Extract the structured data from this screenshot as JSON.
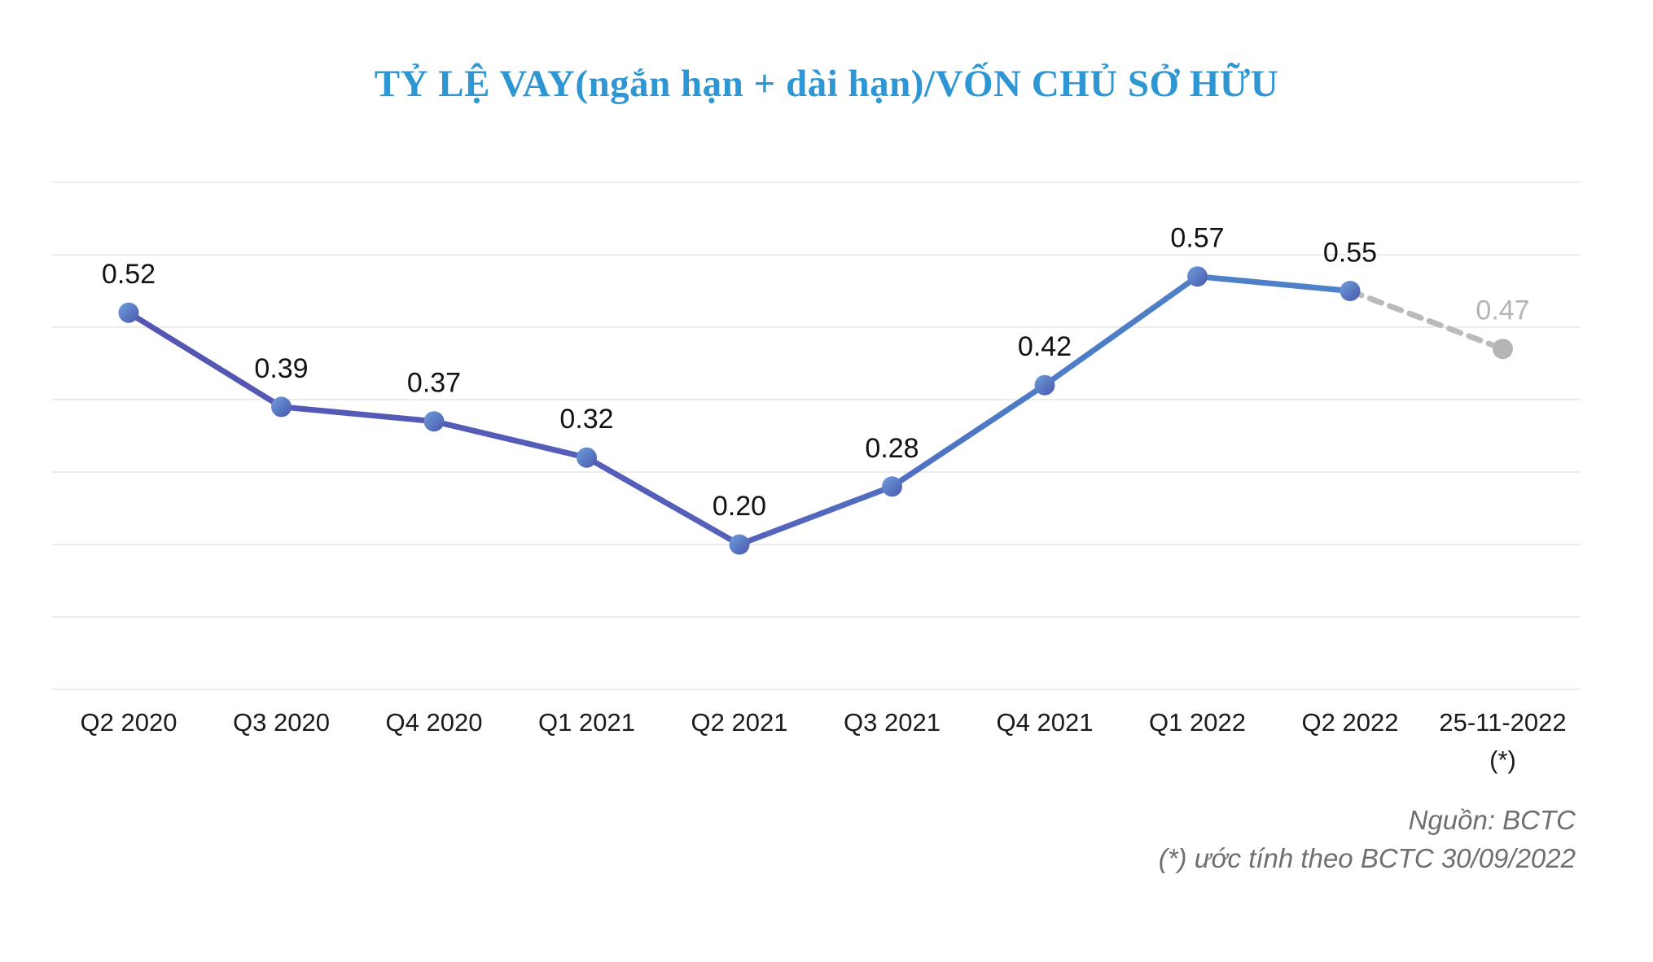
{
  "header": {
    "title": "TỶ LỆ VAY(ngắn hạn + dài hạn)/VỐN CHỦ SỞ HỮU",
    "title_color": "#2E96D2"
  },
  "chart_data": {
    "type": "line",
    "title": "TỶ LỆ VAY(ngắn hạn + dài hạn)/VỐN CHỦ SỞ HỮU",
    "categories": [
      "Q2 2020",
      "Q3 2020",
      "Q4 2020",
      "Q1 2021",
      "Q2 2021",
      "Q3 2021",
      "Q4 2021",
      "Q1 2022",
      "Q2 2022",
      "25-11-2022"
    ],
    "category_sublabels": [
      "",
      "",
      "",
      "",
      "",
      "",
      "",
      "",
      "",
      "(*)"
    ],
    "values": [
      0.52,
      0.39,
      0.37,
      0.32,
      0.2,
      0.28,
      0.42,
      0.57,
      0.55,
      0.47
    ],
    "value_labels": [
      "0.52",
      "0.39",
      "0.37",
      "0.32",
      "0.20",
      "0.28",
      "0.42",
      "0.57",
      "0.55",
      "0.47"
    ],
    "estimated_point_index": 9,
    "xlabel": "",
    "ylabel": "",
    "ylim": [
      0,
      0.7
    ],
    "grid_step": 0.1,
    "grid": true,
    "legend": false,
    "colors": {
      "line_gradient_start": "#5355B0",
      "line_gradient_mid": "#5560BB",
      "line_gradient_mid2": "#4C7CC5",
      "line_gradient_end": "#4F86CA",
      "dot_gradient_light": "#6FA0DC",
      "dot_gradient_dark": "#4856AC",
      "estimated_line": "#BABABA",
      "estimated_dot": "#B5B5B5",
      "estimated_label": "#B4B4B4",
      "gridline": "#ECECEC",
      "value_label": "#121212",
      "axis_label": "#1A1A1A"
    }
  },
  "footer": {
    "source": "Nguồn: BCTC",
    "note": "(*) ước tính theo BCTC 30/09/2022",
    "color": "#6F6F6F"
  }
}
